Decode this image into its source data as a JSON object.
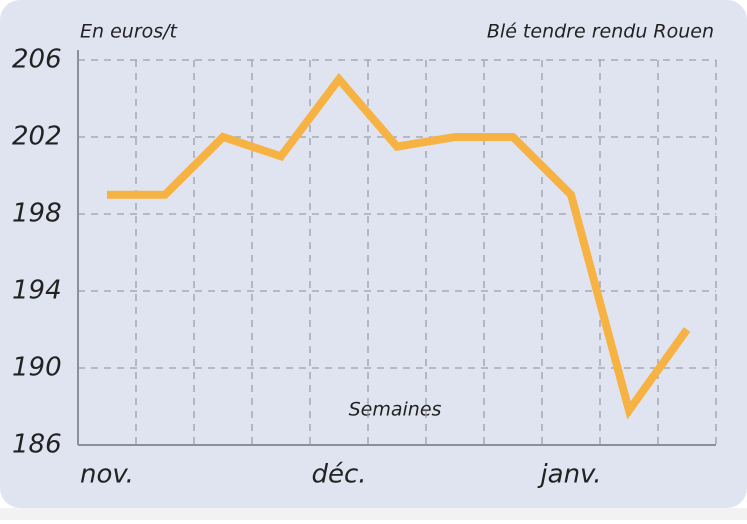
{
  "chart_data": {
    "type": "line",
    "unit_label": "En euros/t",
    "title": "Blé tendre rendu Rouen",
    "x_label": "Semaines",
    "categories": [
      "nov.",
      null,
      null,
      null,
      "déc.",
      null,
      null,
      null,
      "janv.",
      null,
      null
    ],
    "series": [
      {
        "color": "#f7b244",
        "values": [
          199,
          199,
          202,
          201,
          205,
          201.5,
          202,
          202,
          199,
          187.8,
          192
        ]
      }
    ],
    "ylim": [
      186,
      206
    ],
    "yticks": [
      186,
      190,
      194,
      198,
      202,
      206
    ],
    "grid": true
  }
}
